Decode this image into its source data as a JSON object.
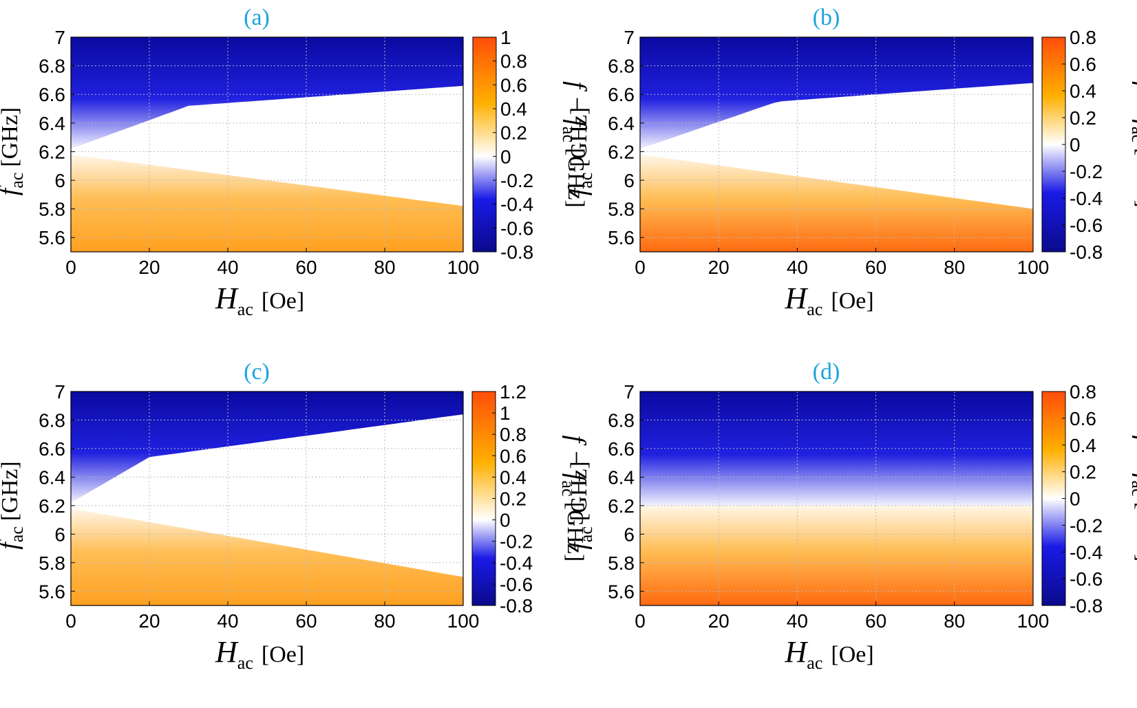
{
  "colors": {
    "title": "#1aa3dc",
    "cold": "#0a0a8c",
    "hot": "#ff4d0a",
    "neutral": "#ffffff"
  },
  "chart_data": [
    {
      "type": "heatmap",
      "title": "(a)",
      "x_range": [
        0,
        100
      ],
      "y_range": [
        5.5,
        7.0
      ],
      "xticks": [
        "0",
        "20",
        "40",
        "60",
        "80",
        "100"
      ],
      "yticks": [
        "7",
        "6.8",
        "6.6",
        "6.4",
        "6.2",
        "6",
        "5.8",
        "5.6"
      ],
      "xlabel": {
        "main": "H",
        "sub": "ac",
        "unit": "[Oe]"
      },
      "ylabel": {
        "main": "f",
        "sub": "ac",
        "unit": "[GHz]"
      },
      "colorbar": {
        "range": [
          -0.8,
          1.0
        ],
        "ticks": [
          "1",
          "0.8",
          "0.6",
          "0.4",
          "0.2",
          "0",
          "-0.2",
          "-0.4",
          "-0.6",
          "-0.8"
        ],
        "label": {
          "main": "f − f",
          "sub": "ac",
          "unit": "[GHz]"
        }
      },
      "locking_band": {
        "center": 6.2,
        "upper_edge": [
          [
            0,
            6.22
          ],
          [
            30,
            6.52
          ],
          [
            100,
            6.66
          ]
        ],
        "lower_edge": [
          [
            0,
            6.18
          ],
          [
            100,
            5.82
          ]
        ]
      },
      "grid": true
    },
    {
      "type": "heatmap",
      "title": "(b)",
      "x_range": [
        0,
        100
      ],
      "y_range": [
        5.5,
        7.0
      ],
      "xticks": [
        "0",
        "20",
        "40",
        "60",
        "80",
        "100"
      ],
      "yticks": [
        "7",
        "6.8",
        "6.6",
        "6.4",
        "6.2",
        "6",
        "5.8",
        "5.6"
      ],
      "xlabel": {
        "main": "H",
        "sub": "ac",
        "unit": "[Oe]"
      },
      "ylabel": {
        "main": "f",
        "sub": "ac",
        "unit": "[GHz]"
      },
      "colorbar": {
        "range": [
          -0.8,
          0.8
        ],
        "ticks": [
          "0.8",
          "0.6",
          "0.4",
          "0.2",
          "0",
          "-0.2",
          "-0.4",
          "-0.6",
          "-0.8"
        ],
        "label": {
          "main": "f − f",
          "sub": "ac",
          "unit": "[GHz]"
        }
      },
      "locking_band": {
        "center": 6.2,
        "upper_edge": [
          [
            0,
            6.22
          ],
          [
            35,
            6.55
          ],
          [
            100,
            6.68
          ]
        ],
        "lower_edge": [
          [
            0,
            6.18
          ],
          [
            100,
            5.8
          ]
        ]
      },
      "grid": true
    },
    {
      "type": "heatmap",
      "title": "(c)",
      "x_range": [
        0,
        100
      ],
      "y_range": [
        5.5,
        7.0
      ],
      "xticks": [
        "0",
        "20",
        "40",
        "60",
        "80",
        "100"
      ],
      "yticks": [
        "7",
        "6.8",
        "6.6",
        "6.4",
        "6.2",
        "6",
        "5.8",
        "5.6"
      ],
      "xlabel": {
        "main": "H",
        "sub": "ac",
        "unit": "[Oe]"
      },
      "ylabel": {
        "main": "f",
        "sub": "ac",
        "unit": "[GHz]"
      },
      "colorbar": {
        "range": [
          -0.8,
          1.2
        ],
        "ticks": [
          "1.2",
          "1",
          "0.8",
          "0.6",
          "0.4",
          "0.2",
          "0",
          "-0.2",
          "-0.4",
          "-0.6",
          "-0.8"
        ],
        "label": {
          "main": "f − f",
          "sub": "ac",
          "unit": "[GHz]"
        }
      },
      "locking_band": {
        "center": 6.2,
        "upper_edge": [
          [
            0,
            6.22
          ],
          [
            20,
            6.54
          ],
          [
            100,
            6.84
          ]
        ],
        "lower_edge": [
          [
            0,
            6.18
          ],
          [
            100,
            5.7
          ]
        ]
      },
      "grid": true
    },
    {
      "type": "heatmap",
      "title": "(d)",
      "x_range": [
        0,
        100
      ],
      "y_range": [
        5.5,
        7.0
      ],
      "xticks": [
        "0",
        "20",
        "40",
        "60",
        "80",
        "100"
      ],
      "yticks": [
        "7",
        "6.8",
        "6.6",
        "6.4",
        "6.2",
        "6",
        "5.8",
        "5.6"
      ],
      "xlabel": {
        "main": "H",
        "sub": "ac",
        "unit": "[Oe]"
      },
      "ylabel": {
        "main": "f",
        "sub": "ac",
        "unit": "[GHz]"
      },
      "colorbar": {
        "range": [
          -0.8,
          0.8
        ],
        "ticks": [
          "0.8",
          "0.6",
          "0.4",
          "0.2",
          "0",
          "-0.2",
          "-0.4",
          "-0.6",
          "-0.8"
        ],
        "label": {
          "main": "f − f",
          "sub": "ac",
          "unit": "[GHz]"
        }
      },
      "locking_band": {
        "center": 6.2,
        "upper_edge": [
          [
            0,
            6.2
          ],
          [
            100,
            6.2
          ]
        ],
        "lower_edge": [
          [
            0,
            6.2
          ],
          [
            100,
            6.2
          ]
        ]
      },
      "grid": true
    }
  ]
}
